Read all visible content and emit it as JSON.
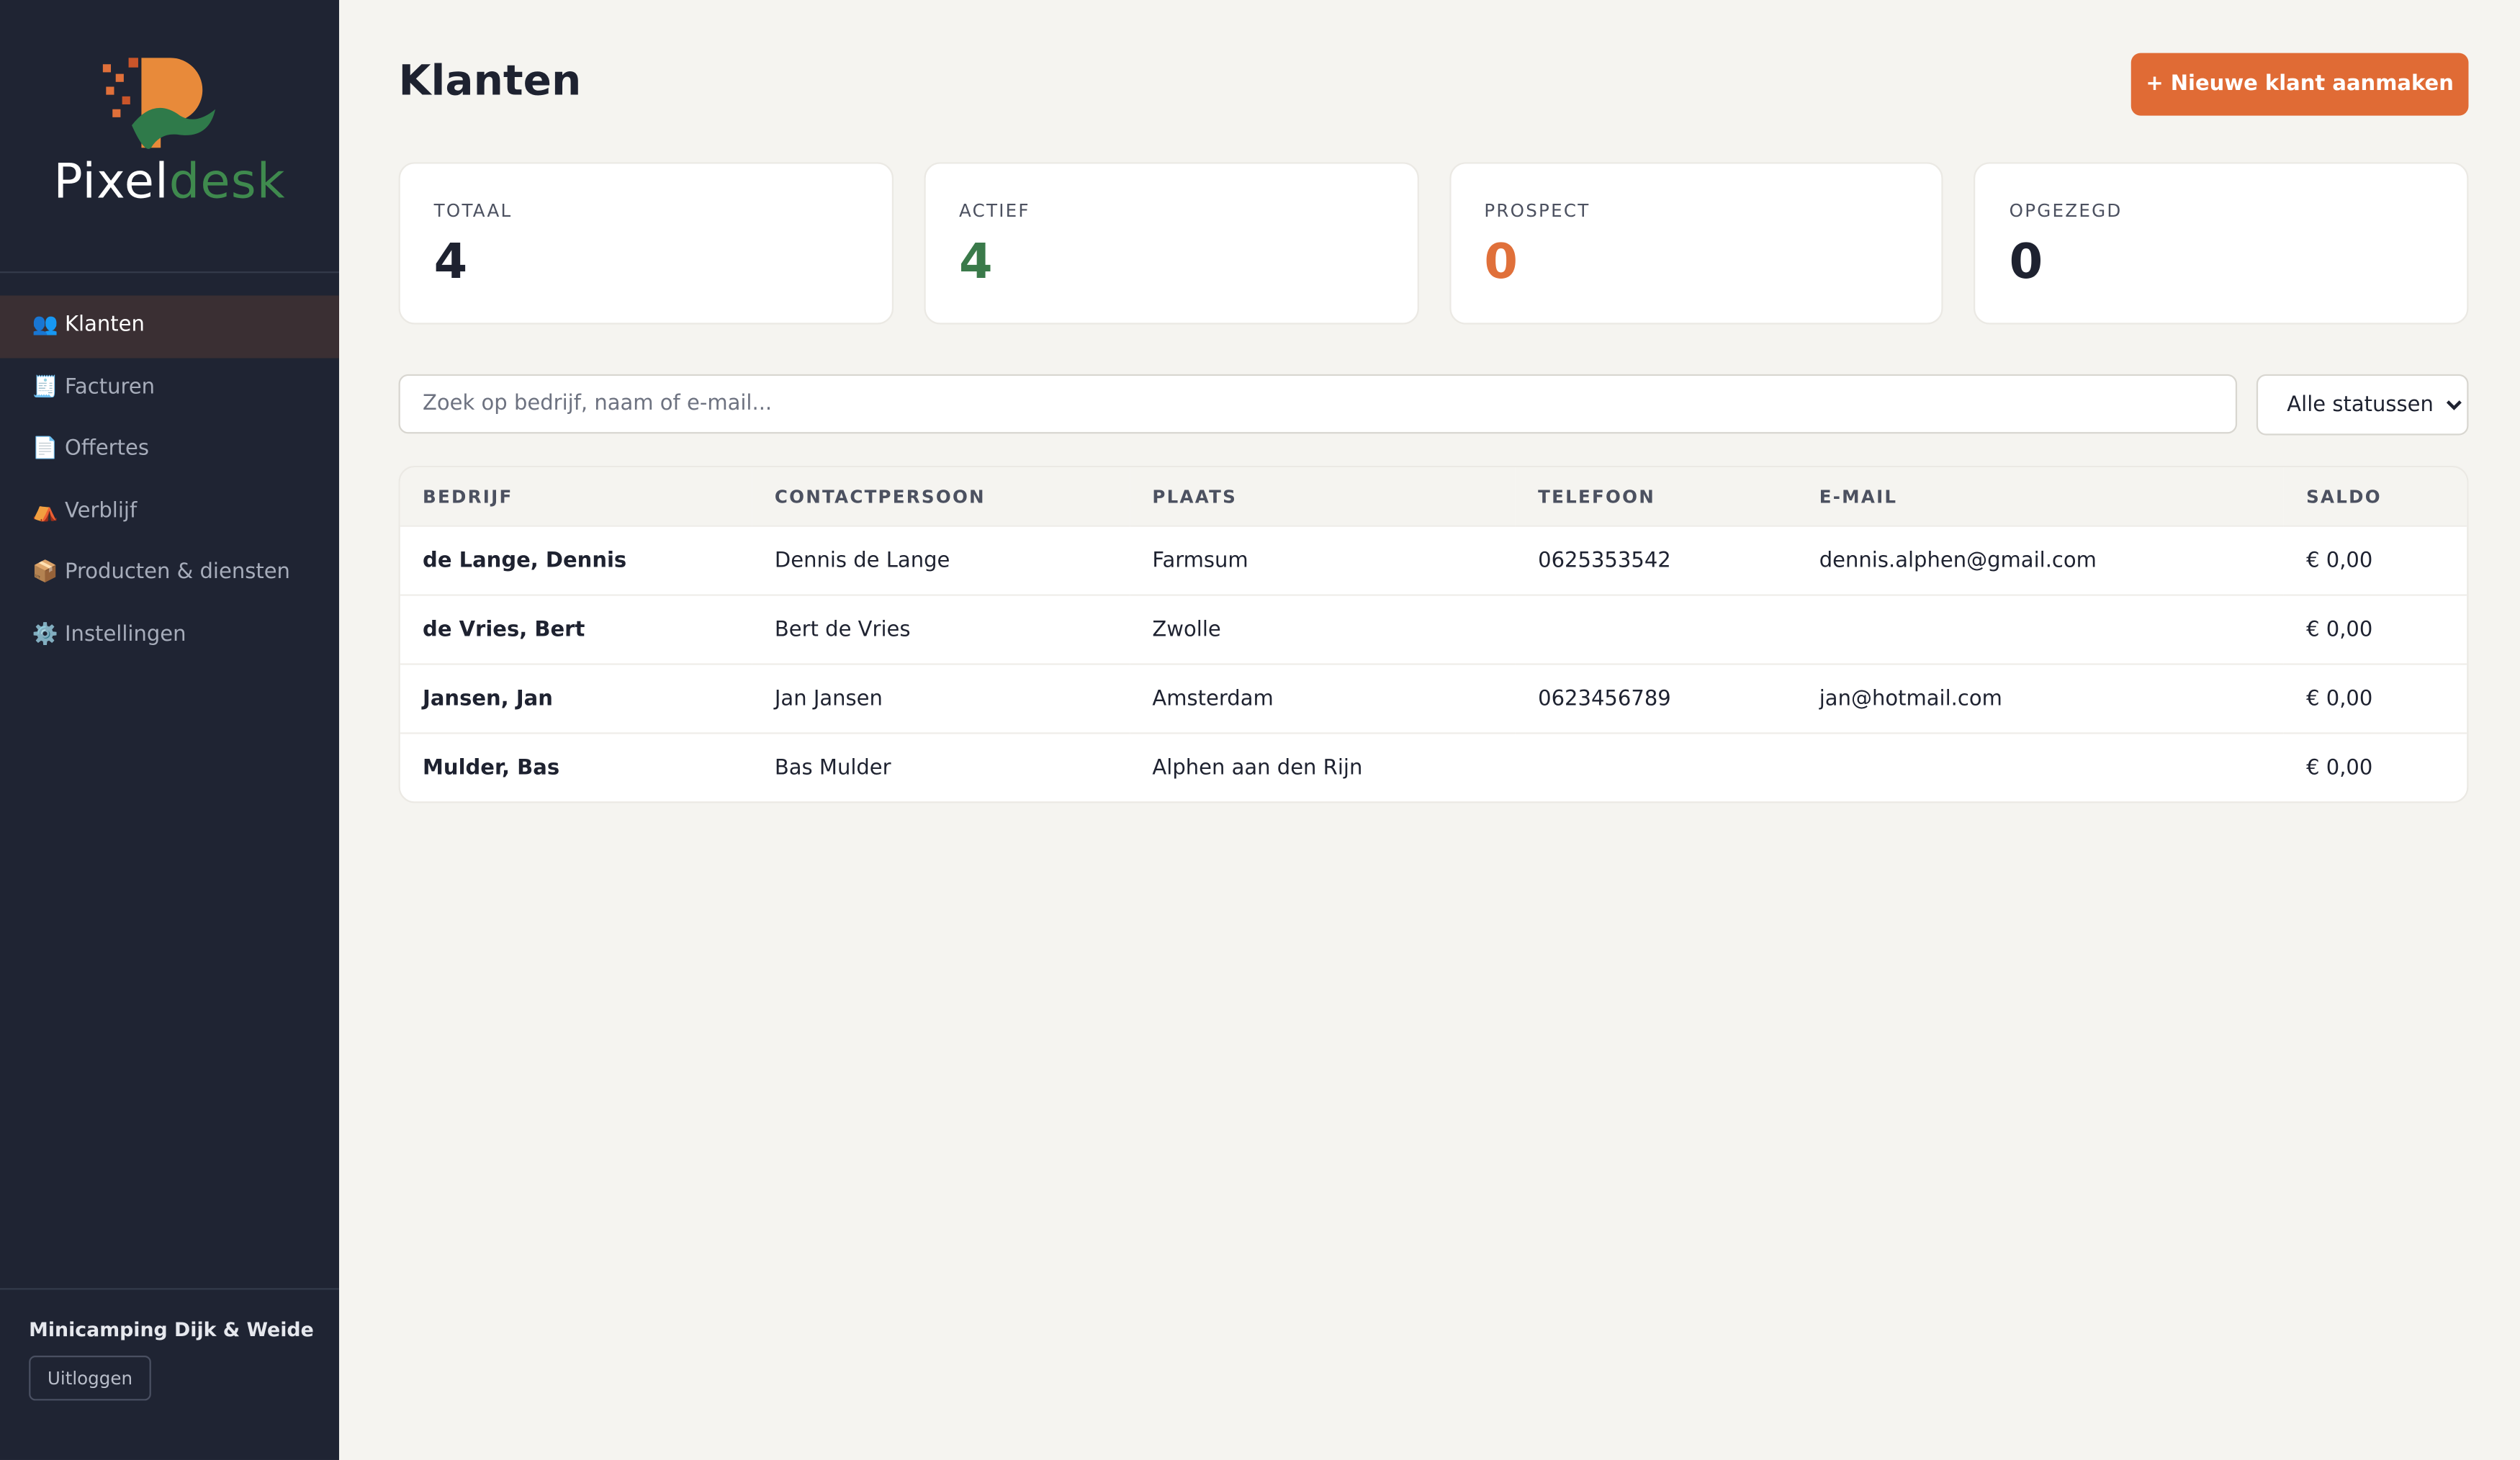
{
  "sidebar": {
    "brand_parts": [
      "Pixel",
      "desk"
    ],
    "nav": [
      "👥 Klanten",
      "🧾 Facturen",
      "📄 Offertes",
      "⛺ Verblijf",
      "📦 Producten & diensten",
      "⚙️ Instellingen"
    ],
    "organization": "Minicamping Dijk & Weide",
    "logout": "Uitloggen"
  },
  "header": {
    "title": "Klanten",
    "button": "+ Nieuwe klant aanmaken"
  },
  "stats": [
    {
      "label": "TOTAAL",
      "value": 4
    },
    {
      "label": "ACTIEF",
      "value": 4
    },
    {
      "label": "PROSPECT",
      "value": 0
    },
    {
      "label": "OPGEZEGD",
      "value": 0
    }
  ],
  "filters": {
    "search_placeholder": "Zoek op bedrijf, naam of e-mail...",
    "status": "Alle statussen"
  },
  "table": {
    "headers": [
      "BEDRIJF",
      "CONTACTPERSOON",
      "PLAATS",
      "TELEFOON",
      "E-MAIL",
      "SALDO"
    ],
    "rows": [
      [
        "de Lange, Dennis",
        "Dennis de Lange",
        "Farmsum",
        "0625353542",
        "dennis.alphen@gmail.com",
        "€ 0,00"
      ],
      [
        "de Vries, Bert",
        "Bert de Vries",
        "Zwolle",
        null,
        null,
        "€ 0,00"
      ],
      [
        "Jansen, Jan",
        "Jan Jansen",
        "Amsterdam",
        "0623456789",
        "jan@hotmail.com",
        "€ 0,00"
      ],
      [
        "Mulder, Bas",
        "Bas Mulder",
        "Alphen aan den Rijn",
        null,
        null,
        "€ 0,00"
      ]
    ]
  }
}
